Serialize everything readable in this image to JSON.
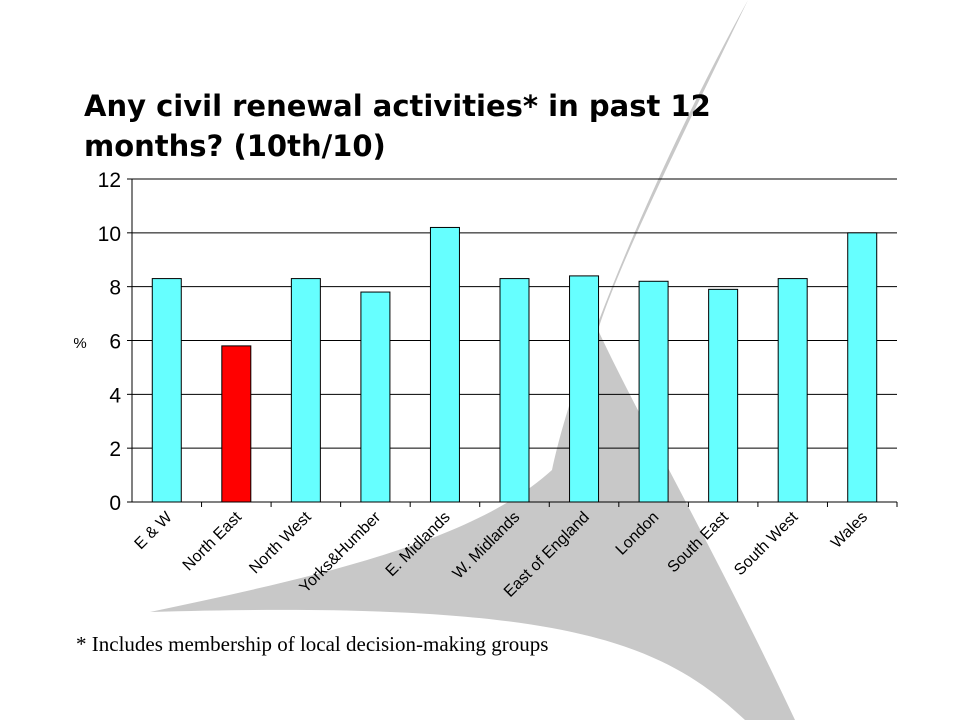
{
  "title": "Any civil renewal activities* in past 12 months? (10th/10)",
  "footnote": "* Includes membership of local decision-making groups",
  "colors": {
    "bar_default": "#66FFFF",
    "bar_highlight": "#FF0000",
    "background_shape": "#C8C8C8"
  },
  "chart_data": {
    "type": "bar",
    "title": "Any civil renewal activities* in past 12 months? (10th/10)",
    "ylabel": "%",
    "xlabel": "",
    "ylim": [
      0,
      12
    ],
    "yticks": [
      0,
      2,
      4,
      6,
      8,
      10,
      12
    ],
    "grid": true,
    "legend": "none",
    "categories": [
      "E & W",
      "North East",
      "North West",
      "Yorks&Humber",
      "E. Midlands",
      "W. Midlands",
      "East of England",
      "London",
      "South East",
      "South West",
      "Wales"
    ],
    "values": [
      8.3,
      5.8,
      8.3,
      7.8,
      10.2,
      8.3,
      8.4,
      8.2,
      7.9,
      8.3,
      10.0
    ],
    "highlight_index": 1
  }
}
